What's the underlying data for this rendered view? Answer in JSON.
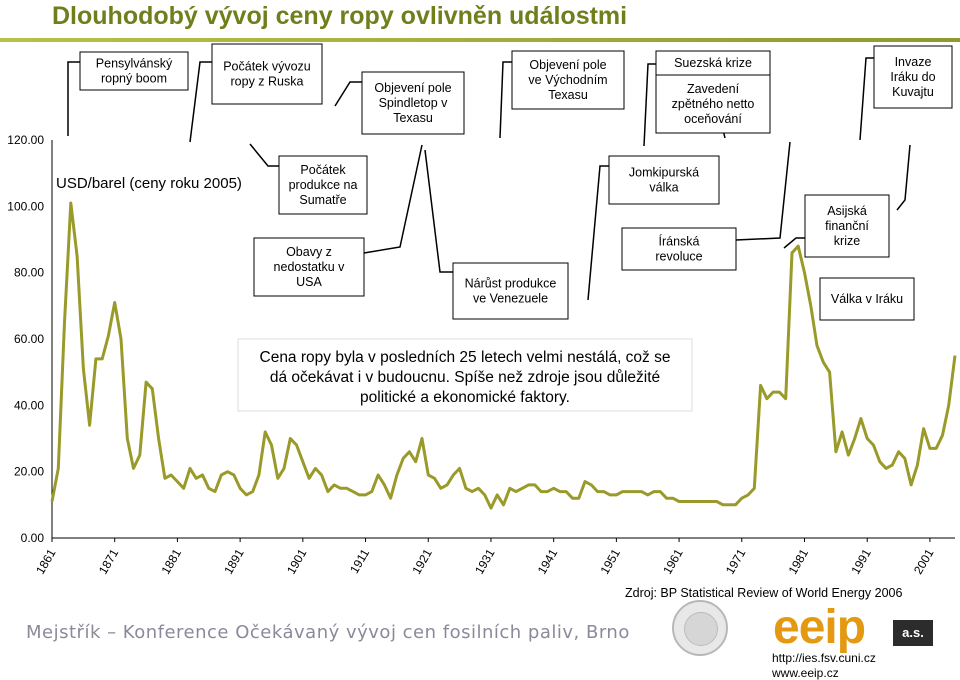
{
  "page": {
    "title": "Dlouhodobý vývoj ceny ropy ovlivněn událostmi",
    "footer": "Mejstřík – Konference Očekávaný vývoj cen fosilních paliv, Brno",
    "source": "Zdroj: BP Statistical Review of World Energy 2006",
    "url1": "http://ies.fsv.cuni.cz",
    "url2": "www.eeip.cz",
    "logo_text": "eeip",
    "logo_suffix": "a.s."
  },
  "colors": {
    "title": "#6f7f1c",
    "line": "#9a9a2a",
    "rule": "#a0ad35",
    "logo": "#e39a12"
  },
  "chart_data": {
    "type": "line",
    "title": "",
    "unit_label": "USD/barel (ceny roku 2005)",
    "ylim": [
      0,
      120
    ],
    "yticks": [
      "0.00",
      "20.00",
      "40.00",
      "60.00",
      "80.00",
      "100.00",
      "120.00"
    ],
    "xlim": [
      1861,
      2005
    ],
    "xticks": [
      "1861",
      "1871",
      "1881",
      "1891",
      "1901",
      "1911",
      "1921",
      "1931",
      "1941",
      "1951",
      "1961",
      "1971",
      "1981",
      "1991",
      "2001"
    ],
    "grid": false,
    "series": [
      {
        "x": [
          1861,
          1862,
          1863,
          1864,
          1865,
          1866,
          1867,
          1868,
          1869,
          1870,
          1871,
          1872,
          1873,
          1874,
          1875,
          1876,
          1877,
          1878,
          1879,
          1880,
          1881,
          1882,
          1883,
          1884,
          1885,
          1886,
          1887,
          1888,
          1889,
          1890,
          1891,
          1892,
          1893,
          1894,
          1895,
          1896,
          1897,
          1898,
          1899,
          1900,
          1901,
          1902,
          1903,
          1904,
          1905,
          1906,
          1907,
          1908,
          1909,
          1910,
          1911,
          1912,
          1913,
          1914,
          1915,
          1916,
          1917,
          1918,
          1919,
          1920,
          1921,
          1922,
          1923,
          1924,
          1925,
          1926,
          1927,
          1928,
          1929,
          1930,
          1931,
          1932,
          1933,
          1934,
          1935,
          1936,
          1937,
          1938,
          1939,
          1940,
          1941,
          1942,
          1943,
          1944,
          1945,
          1946,
          1947,
          1948,
          1949,
          1950,
          1951,
          1952,
          1953,
          1954,
          1955,
          1956,
          1957,
          1958,
          1959,
          1960,
          1961,
          1962,
          1963,
          1964,
          1965,
          1966,
          1967,
          1968,
          1969,
          1970,
          1971,
          1972,
          1973,
          1974,
          1975,
          1976,
          1977,
          1978,
          1979,
          1980,
          1981,
          1982,
          1983,
          1984,
          1985,
          1986,
          1987,
          1988,
          1989,
          1990,
          1991,
          1992,
          1993,
          1994,
          1995,
          1996,
          1997,
          1998,
          1999,
          2000,
          2001,
          2002,
          2003,
          2004,
          2005
        ],
        "values": [
          11,
          21,
          65,
          101,
          85,
          51,
          34,
          54,
          54,
          61,
          71,
          60,
          30,
          21,
          25,
          47,
          45,
          30,
          18,
          19,
          17,
          15,
          21,
          18,
          19,
          15,
          14,
          19,
          20,
          19,
          15,
          13,
          14,
          19,
          32,
          28,
          18,
          21,
          30,
          28,
          23,
          18,
          21,
          19,
          14,
          16,
          15,
          15,
          14,
          13,
          13,
          14,
          19,
          16,
          12,
          19,
          24,
          26,
          23,
          30,
          19,
          18,
          15,
          16,
          19,
          21,
          15,
          14,
          15,
          13,
          9,
          13,
          10,
          15,
          14,
          15,
          16,
          16,
          14,
          14,
          15,
          14,
          14,
          12,
          12,
          17,
          16,
          14,
          14,
          13,
          13,
          14,
          14,
          14,
          14,
          13,
          14,
          14,
          12,
          12,
          11,
          11,
          11,
          11,
          11,
          11,
          11,
          10,
          10,
          10,
          12,
          13,
          15,
          46,
          42,
          44,
          44,
          42,
          86,
          88,
          80,
          70,
          58,
          53,
          50,
          26,
          32,
          25,
          30,
          36,
          30,
          28,
          23,
          21,
          22,
          26,
          24,
          16,
          22,
          33,
          27,
          27,
          31,
          40,
          55
        ]
      }
    ],
    "annotations": [
      {
        "year": 1862,
        "label": "Pensylvánský ropný boom"
      },
      {
        "year": 1874,
        "label": "Počátek vývozu ropy z Ruska"
      },
      {
        "year": 1876,
        "label": "Počátek produkce na Sumatře"
      },
      {
        "year": 1892,
        "label": "Obavy z nedostatku v USA"
      },
      {
        "year": 1901,
        "label": "Objevení pole Spindletop v Texasu"
      },
      {
        "year": 1920,
        "label": "Nárůst produkce ve Venezuele"
      },
      {
        "year": 1930,
        "label": "Objevení pole ve Východním Texasu"
      },
      {
        "year": 1950,
        "label": "Jomkipurská válka"
      },
      {
        "year": 1954,
        "label": "Suezská krize"
      },
      {
        "year": 1958,
        "label": "Zavedení zpětného netto oceňování"
      },
      {
        "year": 1973,
        "label": "Íránská revoluce"
      },
      {
        "year": 1983,
        "label": "Asijská finanční krize"
      },
      {
        "year": 1990,
        "label": "Invaze Iráku do Kuvajtu"
      },
      {
        "year": 2002,
        "label": "Válka v Iráku"
      }
    ],
    "note": "Cena ropy byla v posledních 25 letech velmi nestálá, což se dá očekávat i v budoucnu. Spíše než zdroje jsou důležité politické a ekonomické faktory."
  }
}
